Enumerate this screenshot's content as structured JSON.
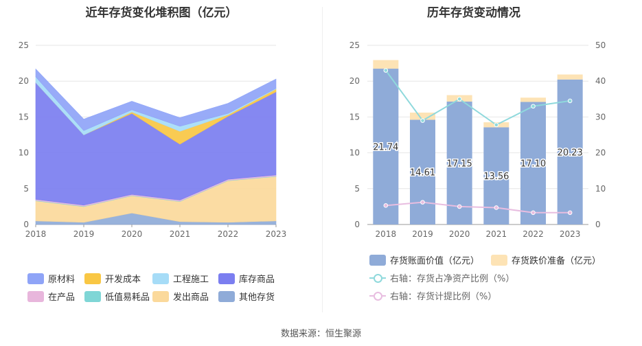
{
  "footer": {
    "source": "数据来源：恒生聚源"
  },
  "colors": {
    "raw": "#8fa4f7",
    "dev": "#f9c744",
    "eng": "#a6dcf7",
    "stock": "#7b7ef0",
    "wip": "#e8b6dc",
    "low": "#7fd6d6",
    "shipped": "#fbd99b",
    "other": "#8fabd8",
    "book": "#8fabd8",
    "reserve": "#fde3b5",
    "ratio_asset": "#8fd9dc",
    "ratio_reserve": "#e8bde0"
  },
  "chart_data": [
    {
      "type": "area",
      "stacked": true,
      "title": "近年存货变化堆积图（亿元）",
      "x": [
        "2018",
        "2019",
        "2020",
        "2021",
        "2022",
        "2023"
      ],
      "ylim": [
        0,
        25
      ],
      "yticks": [
        0,
        5,
        10,
        15,
        20,
        25
      ],
      "grid": true,
      "legend_position": "bottom",
      "series": [
        {
          "name": "其他存货",
          "key": "other",
          "values": [
            0.5,
            0.3,
            1.6,
            0.4,
            0.3,
            0.5
          ]
        },
        {
          "name": "发出商品",
          "key": "shipped",
          "values": [
            2.8,
            2.2,
            2.4,
            2.8,
            5.8,
            6.2
          ]
        },
        {
          "name": "低值易耗品",
          "key": "low",
          "values": [
            0.05,
            0.05,
            0.05,
            0.05,
            0.05,
            0.05
          ]
        },
        {
          "name": "在产品",
          "key": "wip",
          "values": [
            0.15,
            0.15,
            0.15,
            0.15,
            0.15,
            0.15
          ]
        },
        {
          "name": "库存商品",
          "key": "stock",
          "values": [
            16.3,
            9.8,
            11.3,
            7.8,
            8.8,
            11.6
          ]
        },
        {
          "name": "开发成本",
          "key": "dev",
          "values": [
            0.0,
            0.0,
            0.2,
            1.8,
            0.2,
            0.4
          ]
        },
        {
          "name": "工程施工",
          "key": "eng",
          "values": [
            0.8,
            0.6,
            0.3,
            0.7,
            0.2,
            0.1
          ]
        },
        {
          "name": "原材料",
          "key": "raw",
          "values": [
            1.1,
            1.6,
            1.2,
            1.2,
            1.4,
            1.3
          ]
        }
      ],
      "legend": [
        {
          "name": "原材料",
          "key": "raw"
        },
        {
          "name": "开发成本",
          "key": "dev"
        },
        {
          "name": "工程施工",
          "key": "eng"
        },
        {
          "name": "库存商品",
          "key": "stock"
        },
        {
          "name": "在产品",
          "key": "wip"
        },
        {
          "name": "低值易耗品",
          "key": "low"
        },
        {
          "name": "发出商品",
          "key": "shipped"
        },
        {
          "name": "其他存货",
          "key": "other"
        }
      ]
    },
    {
      "type": "bar",
      "stacked": true,
      "title": "历年存货变动情况",
      "categories": [
        "2018",
        "2019",
        "2020",
        "2021",
        "2022",
        "2023"
      ],
      "ylim": [
        0,
        25
      ],
      "yticks": [
        0,
        5,
        10,
        15,
        20,
        25
      ],
      "y2lim": [
        0,
        50
      ],
      "y2ticks": [
        0,
        10,
        20,
        30,
        40,
        50
      ],
      "grid": true,
      "legend_position": "bottom",
      "series": [
        {
          "name": "存货账面价值（亿元）",
          "key": "book",
          "axis": "left",
          "kind": "bar",
          "values": [
            21.74,
            14.61,
            17.15,
            13.56,
            17.1,
            20.23
          ],
          "labels": [
            "21.74",
            "14.61",
            "17.15",
            "13.56",
            "17.10",
            "20.23"
          ]
        },
        {
          "name": "存货跌价准备（亿元）",
          "key": "reserve",
          "axis": "left",
          "kind": "bar",
          "values": [
            1.2,
            1.0,
            0.9,
            0.7,
            0.6,
            0.7
          ]
        },
        {
          "name": "右轴：存货占净资产比例（%）",
          "key": "ratio_asset",
          "axis": "right",
          "kind": "line",
          "values": [
            43.0,
            29.0,
            35.0,
            27.8,
            33.0,
            34.5
          ]
        },
        {
          "name": "右轴：存货计提比例（%）",
          "key": "ratio_reserve",
          "axis": "right",
          "kind": "line",
          "values": [
            5.3,
            6.2,
            5.0,
            4.7,
            3.3,
            3.3
          ]
        }
      ]
    }
  ]
}
